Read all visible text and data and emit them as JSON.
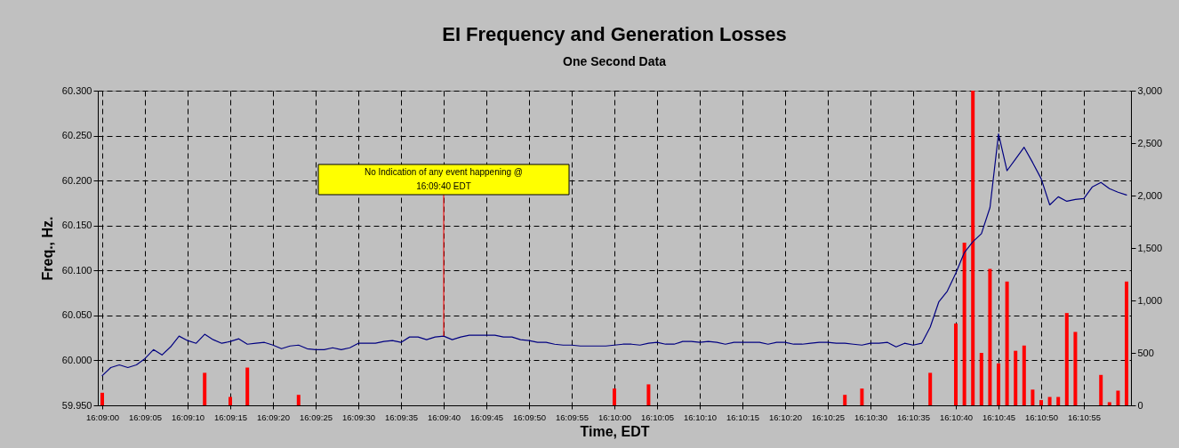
{
  "chart_data": {
    "type": "line",
    "title": "EI Frequency and Generation Losses",
    "subtitle": "One Second Data",
    "xlabel": "Time, EDT",
    "ylabel": "Freq., Hz.",
    "x": [
      16.15,
      16.150278,
      16.150556,
      16.150833,
      16.151111,
      16.151389,
      16.151667,
      16.151944,
      16.152222,
      16.1525,
      16.152778,
      16.153056,
      16.153333,
      16.153611,
      16.153889,
      16.154167,
      16.154444,
      16.154722,
      16.155,
      16.155278,
      16.155556,
      16.155833,
      16.156111,
      16.156389,
      16.156667,
      16.156944,
      16.157222,
      16.1575,
      16.157778,
      16.158056,
      16.158333,
      16.158611,
      16.158889,
      16.159167,
      16.159444,
      16.159722,
      16.16,
      16.160278,
      16.160556,
      16.160833,
      16.161111,
      16.161389,
      16.161667,
      16.161944,
      16.162222,
      16.1625,
      16.162778,
      16.163056,
      16.163333,
      16.163611,
      16.163889,
      16.164167,
      16.164444,
      16.164722,
      16.165,
      16.165278,
      16.165556,
      16.165833,
      16.166111,
      16.166389,
      16.166667,
      16.166944,
      16.167222,
      16.1675,
      16.167778,
      16.168056,
      16.168333,
      16.168611,
      16.168889,
      16.169167,
      16.169444,
      16.169722,
      16.17,
      16.170278,
      16.170556,
      16.170833,
      16.171111,
      16.171389,
      16.171667,
      16.171944,
      16.172222,
      16.1725,
      16.172778,
      16.173056,
      16.173333,
      16.173611,
      16.173889,
      16.174167,
      16.174444,
      16.174722,
      16.175,
      16.175278,
      16.175556,
      16.175833,
      16.176111,
      16.176389,
      16.176667,
      16.176944,
      16.177222,
      16.1775,
      16.177778,
      16.178056,
      16.178333,
      16.178611,
      16.178889,
      16.179167,
      16.179444,
      16.179722,
      16.18,
      16.180278,
      16.180556,
      16.180833,
      16.181111,
      16.181389,
      16.181667,
      16.181944,
      16.182222,
      16.1825,
      16.182778,
      16.183056,
      16.183333
    ],
    "xlim": [
      16.15,
      16.183333
    ],
    "xticks": [
      {
        "value": 16.15,
        "label": "16:09:00"
      },
      {
        "value": 16.151389,
        "label": "16:09:05"
      },
      {
        "value": 16.152778,
        "label": "16:09:10"
      },
      {
        "value": 16.154167,
        "label": "16:09:15"
      },
      {
        "value": 16.155556,
        "label": "16:09:20"
      },
      {
        "value": 16.156944,
        "label": "16:09:25"
      },
      {
        "value": 16.158333,
        "label": "16:09:30"
      },
      {
        "value": 16.159722,
        "label": "16:09:35"
      },
      {
        "value": 16.161111,
        "label": "16:09:40"
      },
      {
        "value": 16.1625,
        "label": "16:09:45"
      },
      {
        "value": 16.163889,
        "label": "16:09:50"
      },
      {
        "value": 16.165278,
        "label": "16:09:55"
      },
      {
        "value": 16.166667,
        "label": "16:10:00"
      },
      {
        "value": 16.168056,
        "label": "16:10:05"
      },
      {
        "value": 16.169444,
        "label": "16:10:10"
      },
      {
        "value": 16.170833,
        "label": "16:10:15"
      },
      {
        "value": 16.172222,
        "label": "16:10:20"
      },
      {
        "value": 16.173611,
        "label": "16:10:25"
      },
      {
        "value": 16.175,
        "label": "16:10:30"
      },
      {
        "value": 16.176389,
        "label": "16:10:35"
      },
      {
        "value": 16.177778,
        "label": "16:10:40"
      },
      {
        "value": 16.179167,
        "label": "16:10:45"
      },
      {
        "value": 16.180556,
        "label": "16:10:50"
      },
      {
        "value": 16.181944,
        "label": "16:10:55"
      }
    ],
    "series": [
      {
        "color": "#000080",
        "values": [
          59.983,
          59.992,
          59.995,
          59.992,
          59.995,
          60.002,
          60.012,
          60.006,
          60.015,
          60.027,
          60.022,
          60.019,
          60.029,
          60.023,
          60.019,
          60.021,
          60.024,
          60.018,
          60.019,
          60.02,
          60.017,
          60.013,
          60.016,
          60.017,
          60.013,
          60.012,
          60.012,
          60.014,
          60.012,
          60.014,
          60.019,
          60.019,
          60.019,
          60.021,
          60.022,
          60.02,
          60.026,
          60.026,
          60.023,
          60.026,
          60.027,
          60.023,
          60.026,
          60.028,
          60.028,
          60.028,
          60.028,
          60.026,
          60.026,
          60.023,
          60.022,
          60.02,
          60.02,
          60.018,
          60.017,
          60.017,
          60.016,
          60.016,
          60.016,
          60.016,
          60.017,
          60.018,
          60.018,
          60.017,
          60.019,
          60.02,
          60.018,
          60.018,
          60.021,
          60.021,
          60.02,
          60.021,
          60.02,
          60.018,
          60.02,
          60.02,
          60.02,
          60.02,
          60.018,
          60.02,
          60.02,
          60.018,
          60.018,
          60.019,
          60.02,
          60.02,
          60.019,
          60.019,
          60.018,
          60.017,
          60.019,
          60.019,
          60.02,
          60.015,
          60.019,
          60.017,
          60.019,
          60.037,
          60.065,
          60.077,
          60.097,
          60.12,
          60.132,
          60.141,
          60.17,
          60.252,
          60.211,
          60.224,
          60.237,
          60.22,
          60.202,
          60.173,
          60.182,
          60.177,
          60.179,
          60.18,
          60.193,
          60.198,
          60.191,
          60.187,
          60.184
        ]
      },
      {
        "type": "bar",
        "axis": "y2",
        "color": "#ff0000",
        "values": [
          120,
          null,
          null,
          null,
          null,
          null,
          null,
          null,
          null,
          null,
          null,
          null,
          310,
          null,
          null,
          80,
          null,
          360,
          null,
          null,
          null,
          null,
          null,
          100,
          null,
          null,
          null,
          null,
          null,
          null,
          null,
          null,
          null,
          null,
          null,
          null,
          null,
          null,
          null,
          null,
          null,
          null,
          null,
          null,
          null,
          null,
          null,
          null,
          null,
          null,
          null,
          null,
          null,
          null,
          null,
          null,
          null,
          null,
          null,
          null,
          160,
          null,
          null,
          null,
          200,
          null,
          null,
          null,
          null,
          null,
          null,
          null,
          null,
          null,
          null,
          null,
          null,
          null,
          null,
          null,
          null,
          null,
          null,
          null,
          null,
          null,
          null,
          100,
          null,
          160,
          null,
          null,
          null,
          null,
          null,
          null,
          null,
          310,
          null,
          null,
          780,
          1550,
          3000,
          500,
          1300,
          400,
          1180,
          520,
          570,
          150,
          50,
          80,
          80,
          880,
          700,
          null,
          null,
          290,
          30,
          140,
          1180
        ]
      }
    ],
    "ylim": [
      59.95,
      60.3
    ],
    "yticks": [
      {
        "value": 59.95,
        "label": "59.950"
      },
      {
        "value": 60.0,
        "label": "60.000"
      },
      {
        "value": 60.05,
        "label": "60.050"
      },
      {
        "value": 60.1,
        "label": "60.100"
      },
      {
        "value": 60.15,
        "label": "60.150"
      },
      {
        "value": 60.2,
        "label": "60.200"
      },
      {
        "value": 60.25,
        "label": "60.250"
      },
      {
        "value": 60.3,
        "label": "60.300"
      }
    ],
    "y2lim": [
      0,
      3000
    ],
    "y2ticks": [
      0,
      500,
      {
        "value": 1000,
        "label": "1,000"
      },
      {
        "value": 1500,
        "label": "1,500"
      },
      {
        "value": 2000,
        "label": "2,000"
      },
      {
        "value": 2500,
        "label": "2,500"
      },
      {
        "value": 3000,
        "label": "3,000"
      }
    ],
    "annotations": [
      {
        "text": "No Indication of any event happening @ 16:09:40 EDT",
        "x": 16.161111,
        "y": 60.027
      }
    ],
    "grid": true,
    "marker": "none",
    "line_style": "solid"
  }
}
